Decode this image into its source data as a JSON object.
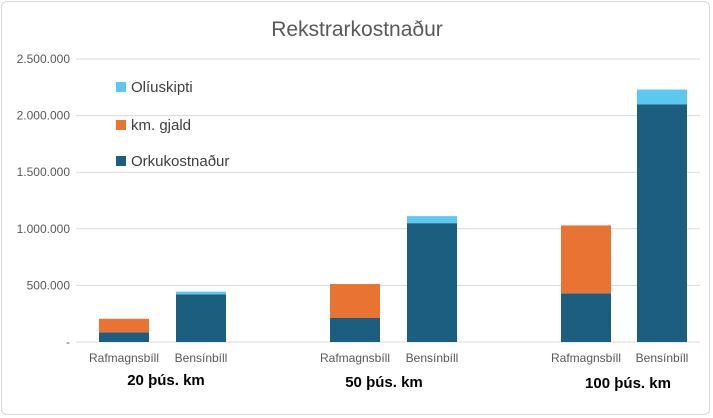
{
  "chart_data": {
    "type": "bar",
    "stacked": true,
    "title": "Rekstrarkostnaður",
    "groups": [
      "20 þús. km",
      "50 þús. km",
      "100 þús. km"
    ],
    "categories": [
      "Rafmagnsbíll",
      "Bensínbíll",
      "Rafmagnsbíll",
      "Bensínbíll",
      "Rafmagnsbíll",
      "Bensínbíll"
    ],
    "series": [
      {
        "name": "Orkukostnaður",
        "color": "#1b5e7f",
        "values": [
          85000,
          420000,
          212000,
          1050000,
          430000,
          2100000
        ]
      },
      {
        "name": "km. gjald",
        "color": "#e97333",
        "values": [
          120000,
          0,
          300000,
          0,
          600000,
          0
        ]
      },
      {
        "name": "Olíuskipti",
        "color": "#5bc8ef",
        "values": [
          0,
          25000,
          0,
          62000,
          0,
          130000
        ]
      }
    ],
    "y_ticks": [
      "-",
      "500.000",
      "1.000.000",
      "1.500.000",
      "2.000.000",
      "2.500.000"
    ],
    "ylim": [
      0,
      2500000
    ],
    "grid": true,
    "legend_position": "top-left"
  }
}
